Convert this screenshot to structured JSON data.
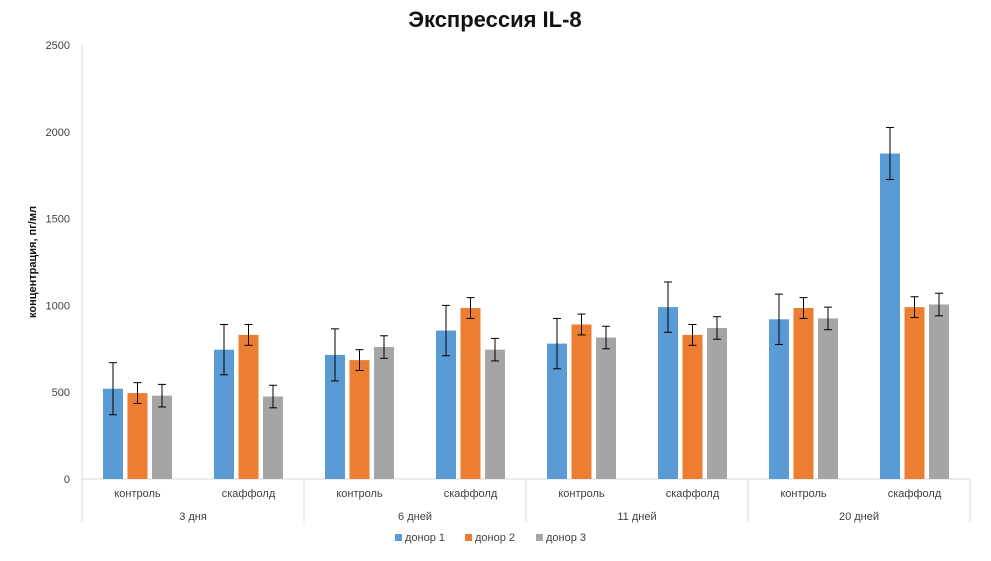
{
  "chart_data": {
    "type": "bar",
    "title": "Экспрессия IL-8",
    "ylabel": "концентрация, пг/мл",
    "xlabel": "",
    "ylim": [
      0,
      2500
    ],
    "yticks": [
      0,
      500,
      1000,
      1500,
      2000,
      2500
    ],
    "groups": [
      {
        "label": "3 дня",
        "categories": [
          "контроль",
          "скаффолд"
        ]
      },
      {
        "label": "6 дней",
        "categories": [
          "контроль",
          "скаффолд"
        ]
      },
      {
        "label": "11 дней",
        "categories": [
          "контроль",
          "скаффолд"
        ]
      },
      {
        "label": "20 дней",
        "categories": [
          "контроль",
          "скаффолд"
        ]
      }
    ],
    "categories": [
      "3 дня / контроль",
      "3 дня / скаффолд",
      "6 дней / контроль",
      "6 дней / скаффолд",
      "11 дней / контроль",
      "11 дней / скаффолд",
      "20 дней / контроль",
      "20 дней / скаффолд"
    ],
    "series": [
      {
        "name": "донор 1",
        "color": "#5B9BD5",
        "values": [
          520,
          745,
          715,
          855,
          780,
          990,
          920,
          1875
        ],
        "errors": [
          150,
          145,
          150,
          145,
          145,
          145,
          145,
          150
        ]
      },
      {
        "name": "донор 2",
        "color": "#ED7D31",
        "values": [
          495,
          830,
          685,
          985,
          890,
          830,
          985,
          990
        ],
        "errors": [
          60,
          60,
          60,
          60,
          60,
          60,
          60,
          60
        ]
      },
      {
        "name": "донор 3",
        "color": "#A5A5A5",
        "values": [
          480,
          475,
          760,
          745,
          815,
          870,
          925,
          1005
        ],
        "errors": [
          65,
          65,
          65,
          65,
          65,
          65,
          65,
          65
        ]
      }
    ],
    "grid": false,
    "legend_position": "bottom"
  }
}
